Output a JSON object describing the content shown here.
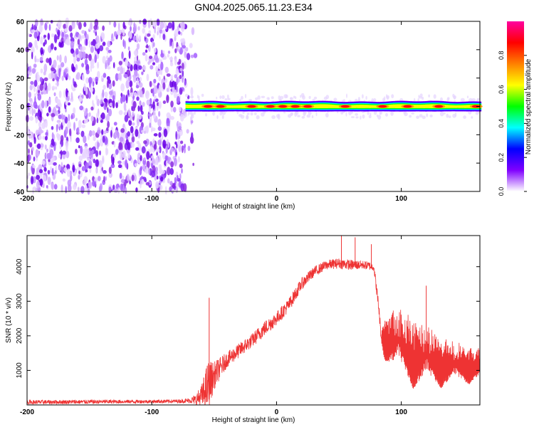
{
  "chart_data": [
    {
      "type": "heatmap",
      "title": "GN04.2025.065.11.23.E34",
      "xlabel": "Height of straight line (km)",
      "ylabel": "Frequency (Hz)",
      "xlim": [
        -200,
        163
      ],
      "ylim": [
        -60,
        60
      ],
      "xticks": [
        -200,
        -100,
        0,
        100
      ],
      "xtick_labels": [
        "-200",
        "-100",
        "0",
        "100"
      ],
      "yticks": [
        -60,
        -40,
        -20,
        0,
        20,
        40,
        60
      ],
      "ytick_labels": [
        "-60",
        "-40",
        "-20",
        "0",
        "20",
        "40",
        "60"
      ],
      "colorbar": {
        "label": "Normalized spectral amplitude",
        "range": [
          0,
          1
        ],
        "ticks": [
          0.0,
          0.2,
          0.4,
          0.6,
          0.8
        ],
        "tick_labels": [
          "0.0",
          "0.2",
          "0.4",
          "0.6",
          "0.8"
        ],
        "colors": [
          "#ffffff",
          "#8000ff",
          "#0000ff",
          "#00ffff",
          "#00ff00",
          "#ffff00",
          "#ff8000",
          "#ff0000",
          "#ff00a0"
        ]
      },
      "noise_region": {
        "x_range": [
          -200,
          -73
        ],
        "freq_range": [
          -60,
          60
        ],
        "typical_amplitude": 0.05
      },
      "signal_band": {
        "x_range": [
          -73,
          163
        ],
        "center_freq": 0,
        "half_width": 3,
        "peak_amplitude": 1.0,
        "peaks_x": [
          -55,
          -45,
          -20,
          -5,
          5,
          15,
          25,
          55,
          85,
          105,
          130,
          160
        ]
      }
    },
    {
      "type": "line",
      "xlabel": "Height of straight line (km)",
      "ylabel": "SNR (10 * v/v)",
      "xlim": [
        -200,
        163
      ],
      "ylim": [
        0,
        4900
      ],
      "xticks": [
        -200,
        -100,
        0,
        100
      ],
      "xtick_labels": [
        "-200",
        "-100",
        "0",
        "100"
      ],
      "yticks": [
        1000,
        2000,
        3000,
        4000
      ],
      "ytick_labels": [
        "1000",
        "2000",
        "3000",
        "4000"
      ],
      "series": [
        {
          "name": "SNR",
          "color": "#ee3333",
          "envelope": {
            "x": [
              -200,
              -150,
              -100,
              -75,
              -70,
              -65,
              -60,
              -55,
              -50,
              -40,
              -20,
              -10,
              0,
              10,
              20,
              30,
              40,
              50,
              60,
              70,
              78,
              82,
              84,
              86,
              90,
              100,
              110,
              120,
              130,
              140,
              150,
              163
            ],
            "base": [
              80,
              90,
              100,
              110,
              130,
              150,
              250,
              550,
              850,
              1300,
              1850,
              2200,
              2500,
              2900,
              3500,
              3850,
              4050,
              4100,
              4050,
              4050,
              4000,
              2800,
              1900,
              1800,
              1700,
              1400,
              1150,
              1050,
              1000,
              950,
              950,
              1000
            ],
            "noise": [
              120,
              120,
              100,
              110,
              150,
              300,
              700,
              1500,
              800,
              450,
              400,
              450,
              400,
              400,
              350,
              300,
              280,
              300,
              300,
              250,
              250,
              400,
              300,
              1300,
              1700,
              2000,
              2000,
              1800,
              1500,
              1300,
              1100,
              1000
            ]
          },
          "spikes": [
            {
              "x": -54,
              "y": 3100
            },
            {
              "x": 52,
              "y": 4900
            },
            {
              "x": 63,
              "y": 4850
            },
            {
              "x": 76,
              "y": 4650
            },
            {
              "x": 120,
              "y": 3450
            }
          ]
        }
      ]
    }
  ]
}
